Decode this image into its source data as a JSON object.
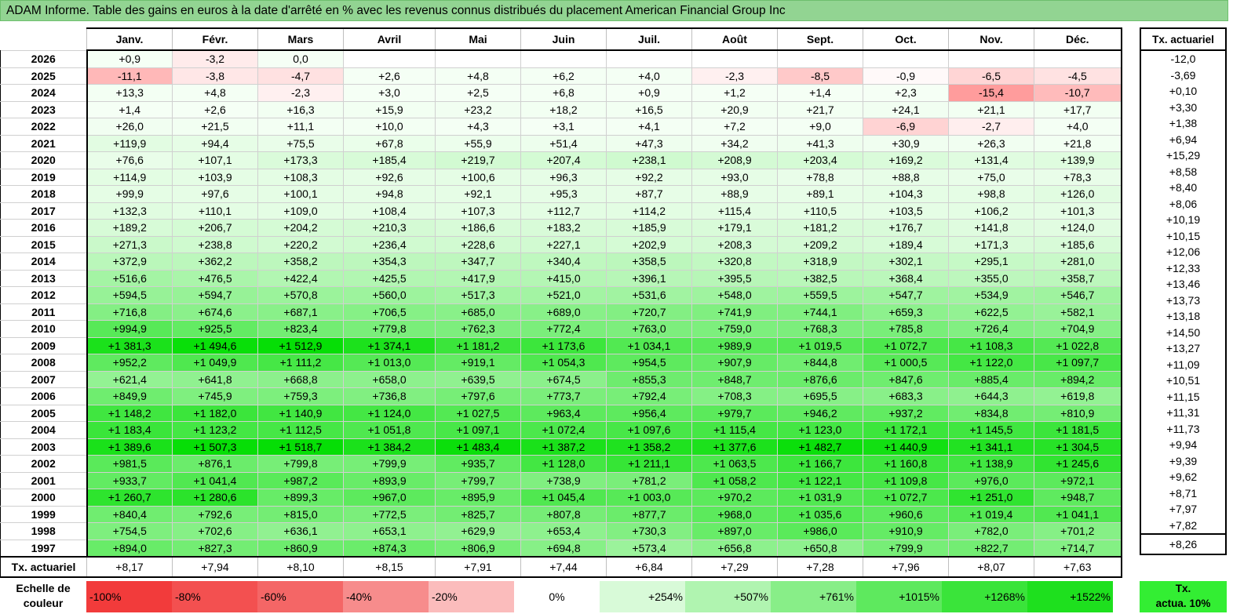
{
  "title": "ADAM Informe. Table des gains en euros à la date d'arrêté en % avec les revenus connus distribués du placement American Financial Group Inc",
  "months": [
    "Janv.",
    "Févr.",
    "Mars",
    "Avril",
    "Mai",
    "Juin",
    "Juil.",
    "Août",
    "Sept.",
    "Oct.",
    "Nov.",
    "Déc."
  ],
  "actuarial_header": "Tx. actuariel",
  "footer_label": "Tx. actuariel",
  "footer_row": [
    "+8,17",
    "+7,94",
    "+8,10",
    "+8,15",
    "+7,91",
    "+7,44",
    "+6,84",
    "+7,29",
    "+7,28",
    "+7,96",
    "+8,07",
    "+7,63"
  ],
  "footer_total": "+8,26",
  "scale": {
    "label_line1": "Echelle de",
    "label_line2": "couleur",
    "items": [
      {
        "label": "-100%",
        "color": "#f23b3b",
        "kind": "neg"
      },
      {
        "label": "-80%",
        "color": "#f35050",
        "kind": "neg"
      },
      {
        "label": "-60%",
        "color": "#f46666",
        "kind": "neg"
      },
      {
        "label": "-40%",
        "color": "#f78c8c",
        "kind": "neg"
      },
      {
        "label": "-20%",
        "color": "#fbbcbc",
        "kind": "neg"
      },
      {
        "label": "0%",
        "color": "#ffffff",
        "kind": "zero"
      },
      {
        "label": "+254%",
        "color": "#d8fad8",
        "kind": "pos"
      },
      {
        "label": "+507%",
        "color": "#b0f4b0",
        "kind": "pos"
      },
      {
        "label": "+761%",
        "color": "#88ee88",
        "kind": "pos"
      },
      {
        "label": "+1015%",
        "color": "#5ee95e",
        "kind": "pos"
      },
      {
        "label": "+1268%",
        "color": "#3ae43a",
        "kind": "pos"
      },
      {
        "label": "+1522%",
        "color": "#1ee01e",
        "kind": "pos"
      }
    ],
    "tx_line1": "Tx.",
    "tx_line2": "actua. 10%",
    "tx_color": "#33ee33"
  },
  "chart_data": {
    "type": "heatmap",
    "title": "ADAM Informe. Table des gains en euros à la date d'arrêté en % avec les revenus connus distribués du placement American Financial Group Inc",
    "columns": [
      "Janv.",
      "Févr.",
      "Mars",
      "Avril",
      "Mai",
      "Juin",
      "Juil.",
      "Août",
      "Sept.",
      "Oct.",
      "Nov.",
      "Déc."
    ],
    "rows": [
      {
        "year": "2026",
        "values": [
          "+0,9",
          "-3,2",
          "0,0",
          "",
          "",
          "",
          "",
          "",
          "",
          "",
          "",
          ""
        ],
        "actuarial": "-12,0"
      },
      {
        "year": "2025",
        "values": [
          "-11,1",
          "-3,8",
          "-4,7",
          "+2,6",
          "+4,8",
          "+6,2",
          "+4,0",
          "-2,3",
          "-8,5",
          "-0,9",
          "-6,5",
          "-4,5"
        ],
        "actuarial": "-3,69"
      },
      {
        "year": "2024",
        "values": [
          "+13,3",
          "+4,8",
          "-2,3",
          "+3,0",
          "+2,5",
          "+6,8",
          "+0,9",
          "+1,2",
          "+1,4",
          "+2,3",
          "-15,4",
          "-10,7"
        ],
        "actuarial": "+0,10"
      },
      {
        "year": "2023",
        "values": [
          "+1,4",
          "+2,6",
          "+16,3",
          "+15,9",
          "+23,2",
          "+18,2",
          "+16,5",
          "+20,9",
          "+21,7",
          "+24,1",
          "+21,1",
          "+17,7"
        ],
        "actuarial": "+3,30"
      },
      {
        "year": "2022",
        "values": [
          "+26,0",
          "+21,5",
          "+11,1",
          "+10,0",
          "+4,3",
          "+3,1",
          "+4,1",
          "+7,2",
          "+9,0",
          "-6,9",
          "-2,7",
          "+4,0"
        ],
        "actuarial": "+1,38"
      },
      {
        "year": "2021",
        "values": [
          "+119,9",
          "+94,4",
          "+75,5",
          "+67,8",
          "+55,9",
          "+51,4",
          "+47,3",
          "+34,2",
          "+41,3",
          "+30,9",
          "+26,3",
          "+21,8"
        ],
        "actuarial": "+6,94"
      },
      {
        "year": "2020",
        "values": [
          "+76,6",
          "+107,1",
          "+173,3",
          "+185,4",
          "+219,7",
          "+207,4",
          "+238,1",
          "+208,9",
          "+203,4",
          "+169,2",
          "+131,4",
          "+139,9"
        ],
        "actuarial": "+15,29"
      },
      {
        "year": "2019",
        "values": [
          "+114,9",
          "+103,9",
          "+108,3",
          "+92,6",
          "+100,6",
          "+96,3",
          "+92,2",
          "+93,0",
          "+78,8",
          "+88,8",
          "+75,0",
          "+78,3"
        ],
        "actuarial": "+8,58"
      },
      {
        "year": "2018",
        "values": [
          "+99,9",
          "+97,6",
          "+100,1",
          "+94,8",
          "+92,1",
          "+95,3",
          "+87,7",
          "+88,9",
          "+89,1",
          "+104,3",
          "+98,8",
          "+126,0"
        ],
        "actuarial": "+8,40"
      },
      {
        "year": "2017",
        "values": [
          "+132,3",
          "+110,1",
          "+109,0",
          "+108,4",
          "+107,3",
          "+112,7",
          "+114,2",
          "+115,4",
          "+110,5",
          "+103,5",
          "+106,2",
          "+101,3"
        ],
        "actuarial": "+8,06"
      },
      {
        "year": "2016",
        "values": [
          "+189,2",
          "+206,7",
          "+204,2",
          "+210,3",
          "+186,6",
          "+183,2",
          "+185,9",
          "+179,1",
          "+181,2",
          "+176,7",
          "+141,8",
          "+124,0"
        ],
        "actuarial": "+10,19"
      },
      {
        "year": "2015",
        "values": [
          "+271,3",
          "+238,8",
          "+220,2",
          "+236,4",
          "+228,6",
          "+227,1",
          "+202,9",
          "+208,3",
          "+209,2",
          "+189,4",
          "+171,3",
          "+185,6"
        ],
        "actuarial": "+10,15"
      },
      {
        "year": "2014",
        "values": [
          "+372,9",
          "+362,2",
          "+358,2",
          "+354,3",
          "+347,7",
          "+340,4",
          "+358,5",
          "+320,8",
          "+318,9",
          "+302,1",
          "+295,1",
          "+281,0"
        ],
        "actuarial": "+12,06"
      },
      {
        "year": "2013",
        "values": [
          "+516,6",
          "+476,5",
          "+422,4",
          "+425,5",
          "+417,9",
          "+415,0",
          "+396,1",
          "+395,5",
          "+382,5",
          "+368,4",
          "+355,0",
          "+358,7"
        ],
        "actuarial": "+12,33"
      },
      {
        "year": "2012",
        "values": [
          "+594,5",
          "+594,7",
          "+570,8",
          "+560,0",
          "+517,3",
          "+521,0",
          "+531,6",
          "+548,0",
          "+559,5",
          "+547,7",
          "+534,9",
          "+546,7"
        ],
        "actuarial": "+13,46"
      },
      {
        "year": "2011",
        "values": [
          "+716,8",
          "+674,6",
          "+687,1",
          "+706,5",
          "+685,0",
          "+689,0",
          "+720,7",
          "+741,9",
          "+744,1",
          "+659,3",
          "+622,5",
          "+582,1"
        ],
        "actuarial": "+13,73"
      },
      {
        "year": "2010",
        "values": [
          "+994,9",
          "+925,5",
          "+823,4",
          "+779,8",
          "+762,3",
          "+772,4",
          "+763,0",
          "+759,0",
          "+768,3",
          "+785,8",
          "+726,4",
          "+704,9"
        ],
        "actuarial": "+13,18"
      },
      {
        "year": "2009",
        "values": [
          "+1 381,3",
          "+1 494,6",
          "+1 512,9",
          "+1 374,1",
          "+1 181,2",
          "+1 173,6",
          "+1 034,1",
          "+989,9",
          "+1 019,5",
          "+1 072,7",
          "+1 108,3",
          "+1 022,8"
        ],
        "actuarial": "+14,50"
      },
      {
        "year": "2008",
        "values": [
          "+952,2",
          "+1 049,9",
          "+1 111,2",
          "+1 013,0",
          "+919,1",
          "+1 054,3",
          "+954,5",
          "+907,9",
          "+844,8",
          "+1 000,5",
          "+1 122,0",
          "+1 097,7"
        ],
        "actuarial": "+13,27"
      },
      {
        "year": "2007",
        "values": [
          "+621,4",
          "+641,8",
          "+668,8",
          "+658,0",
          "+639,5",
          "+674,5",
          "+855,3",
          "+848,7",
          "+876,6",
          "+847,6",
          "+885,4",
          "+894,2"
        ],
        "actuarial": "+11,09"
      },
      {
        "year": "2006",
        "values": [
          "+849,9",
          "+745,9",
          "+759,3",
          "+736,8",
          "+797,6",
          "+773,7",
          "+792,4",
          "+708,3",
          "+695,5",
          "+683,3",
          "+644,3",
          "+619,8"
        ],
        "actuarial": "+10,51"
      },
      {
        "year": "2005",
        "values": [
          "+1 148,2",
          "+1 182,0",
          "+1 140,9",
          "+1 124,0",
          "+1 027,5",
          "+963,4",
          "+956,4",
          "+979,7",
          "+946,2",
          "+937,2",
          "+834,8",
          "+810,9"
        ],
        "actuarial": "+11,15"
      },
      {
        "year": "2004",
        "values": [
          "+1 183,4",
          "+1 123,2",
          "+1 112,5",
          "+1 051,8",
          "+1 097,1",
          "+1 072,4",
          "+1 097,6",
          "+1 115,4",
          "+1 123,0",
          "+1 172,1",
          "+1 145,5",
          "+1 181,5"
        ],
        "actuarial": "+11,31"
      },
      {
        "year": "2003",
        "values": [
          "+1 389,6",
          "+1 507,3",
          "+1 518,7",
          "+1 384,2",
          "+1 483,4",
          "+1 387,2",
          "+1 358,2",
          "+1 377,6",
          "+1 482,7",
          "+1 440,9",
          "+1 341,1",
          "+1 304,5"
        ],
        "actuarial": "+11,73"
      },
      {
        "year": "2002",
        "values": [
          "+981,5",
          "+876,1",
          "+799,8",
          "+799,9",
          "+935,7",
          "+1 128,0",
          "+1 211,1",
          "+1 063,5",
          "+1 166,7",
          "+1 160,8",
          "+1 138,9",
          "+1 245,6"
        ],
        "actuarial": "+9,94"
      },
      {
        "year": "2001",
        "values": [
          "+933,7",
          "+1 041,4",
          "+987,2",
          "+893,9",
          "+799,7",
          "+738,9",
          "+781,2",
          "+1 058,2",
          "+1 122,1",
          "+1 109,8",
          "+976,0",
          "+972,1"
        ],
        "actuarial": "+9,39"
      },
      {
        "year": "2000",
        "values": [
          "+1 260,7",
          "+1 280,6",
          "+899,3",
          "+967,0",
          "+895,9",
          "+1 045,4",
          "+1 003,0",
          "+970,2",
          "+1 031,9",
          "+1 072,7",
          "+1 251,0",
          "+948,7"
        ],
        "actuarial": "+9,62"
      },
      {
        "year": "1999",
        "values": [
          "+840,4",
          "+792,6",
          "+815,0",
          "+772,5",
          "+825,7",
          "+807,8",
          "+877,7",
          "+968,0",
          "+1 035,6",
          "+960,6",
          "+1 019,4",
          "+1 041,1"
        ],
        "actuarial": "+8,71"
      },
      {
        "year": "1998",
        "values": [
          "+754,5",
          "+702,6",
          "+636,1",
          "+653,1",
          "+629,9",
          "+653,4",
          "+730,3",
          "+897,0",
          "+986,0",
          "+910,9",
          "+782,0",
          "+701,2"
        ],
        "actuarial": "+7,97"
      },
      {
        "year": "1997",
        "values": [
          "+894,0",
          "+827,3",
          "+860,9",
          "+874,3",
          "+806,9",
          "+694,8",
          "+573,4",
          "+656,8",
          "+650,8",
          "+799,9",
          "+822,7",
          "+714,7"
        ],
        "actuarial": "+7,82"
      }
    ]
  }
}
